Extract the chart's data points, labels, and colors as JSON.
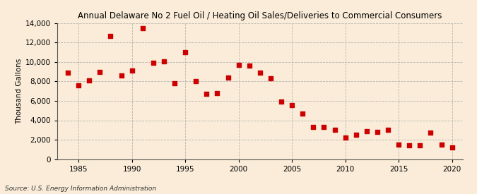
{
  "title": "Annual Delaware No 2 Fuel Oil / Heating Oil Sales/Deliveries to Commercial Consumers",
  "ylabel": "Thousand Gallons",
  "source": "Source: U.S. Energy Information Administration",
  "background_color": "#faecd8",
  "plot_background_color": "#faecd8",
  "marker_color": "#cc0000",
  "marker_size": 18,
  "xlim": [
    1983,
    2021
  ],
  "ylim": [
    0,
    14000
  ],
  "yticks": [
    0,
    2000,
    4000,
    6000,
    8000,
    10000,
    12000,
    14000
  ],
  "xticks": [
    1985,
    1990,
    1995,
    2000,
    2005,
    2010,
    2015,
    2020
  ],
  "years": [
    1984,
    1985,
    1986,
    1987,
    1988,
    1989,
    1990,
    1991,
    1992,
    1993,
    1994,
    1995,
    1996,
    1997,
    1998,
    1999,
    2000,
    2001,
    2002,
    2003,
    2004,
    2005,
    2006,
    2007,
    2008,
    2009,
    2010,
    2011,
    2012,
    2013,
    2014,
    2015,
    2016,
    2017,
    2018,
    2019,
    2020
  ],
  "values": [
    8900,
    7600,
    8100,
    9000,
    12700,
    8600,
    9100,
    13500,
    9900,
    10100,
    7800,
    11000,
    8000,
    6700,
    6800,
    8400,
    9700,
    9600,
    8900,
    8300,
    5900,
    5600,
    4700,
    3300,
    3300,
    3000,
    2200,
    2500,
    2900,
    2800,
    3000,
    1500,
    1400,
    1400,
    2700,
    1500,
    1200
  ]
}
